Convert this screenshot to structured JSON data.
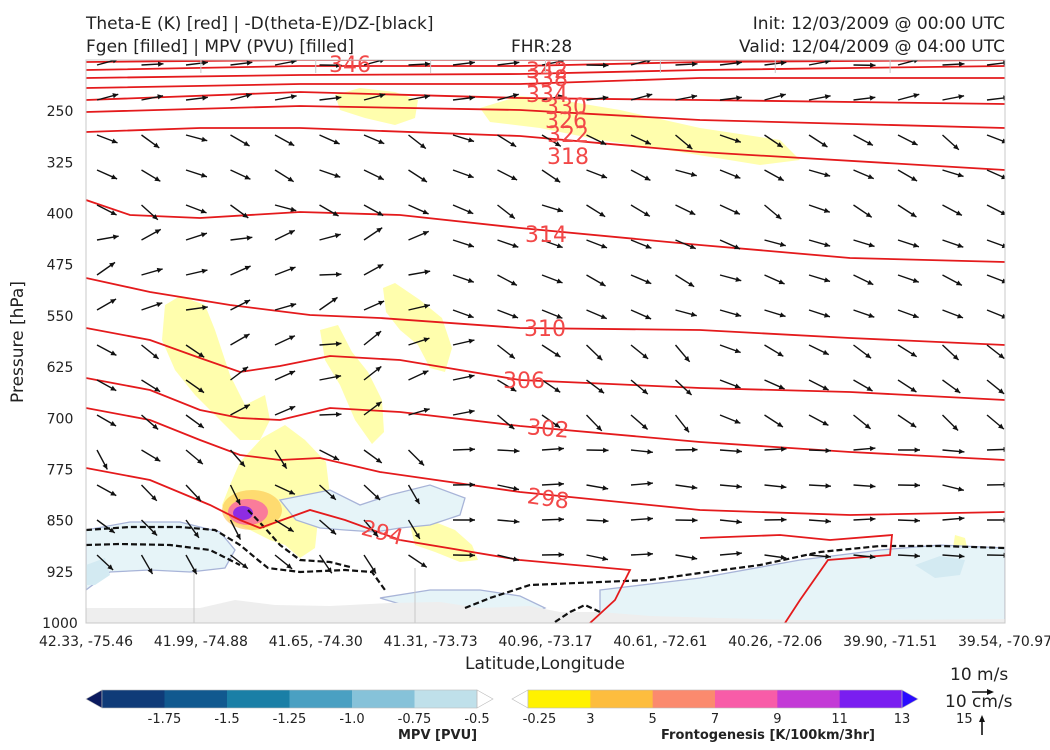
{
  "header": {
    "title_line1_left": "Theta-E (K) [red] | -D(theta-E)/DZ-[black]",
    "title_line2_left": "Fgen [filled] | MPV (PVU) [filled]",
    "fhr": "FHR:28",
    "init": "Init: 12/03/2009 @ 00:00 UTC",
    "valid": "Valid: 12/04/2009 @ 04:00 UTC"
  },
  "chart_data": {
    "type": "cross-section",
    "xlabel": "Latitude,Longitude",
    "ylabel": "Pressure [hPa]",
    "ylim": [
      1000,
      175
    ],
    "x_ticks": [
      "42.33, -75.46",
      "41.99, -74.88",
      "41.65, -74.30",
      "41.31, -73.73",
      "40.96, -73.17",
      "40.61, -72.61",
      "40.26, -72.06",
      "39.90, -71.51",
      "39.54, -70.97"
    ],
    "y_ticks": [
      "250",
      "325",
      "400",
      "475",
      "550",
      "625",
      "700",
      "775",
      "850",
      "925",
      "1000"
    ],
    "y_tick_values": [
      250,
      325,
      400,
      475,
      550,
      625,
      700,
      775,
      850,
      925,
      1000
    ],
    "theta_e_contour_labels": [
      "346",
      "342",
      "338",
      "334",
      "330",
      "326",
      "322",
      "318",
      "314",
      "310",
      "306",
      "302",
      "298",
      "294"
    ],
    "wind_legend": {
      "u": "10 m/s",
      "w": "10 cm/s"
    },
    "mpv_colorbar": {
      "label": "MPV [PVU]",
      "ticks": [
        "-1.75",
        "-1.5",
        "-1.25",
        "-1.0",
        "-0.75",
        "-0.5",
        "-0.25"
      ],
      "colors": [
        "#0b1a5e",
        "#0f3b78",
        "#11598f",
        "#1a7fa6",
        "#4aa0c2",
        "#86c2d9",
        "#bfe0ea",
        "#ffffff"
      ]
    },
    "fgen_colorbar": {
      "label": "Frontogenesis [K/100km/3hr]",
      "ticks": [
        "3",
        "5",
        "7",
        "9",
        "11",
        "13",
        "15"
      ],
      "colors": [
        "#ffffff",
        "#fff200",
        "#fdbd3e",
        "#fb8a6e",
        "#f85ca8",
        "#c33ad6",
        "#7a1ef0",
        "#2a0bff"
      ]
    }
  }
}
